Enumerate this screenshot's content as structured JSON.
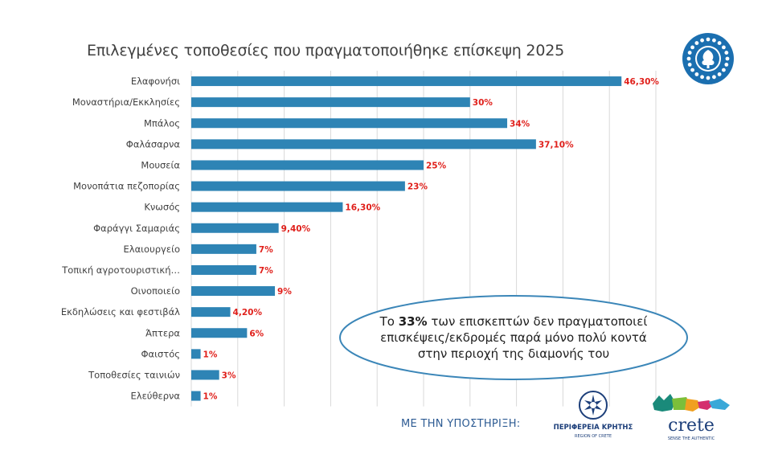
{
  "title": "Επιλεγμένες τοποθεσίες που πραγματοποιήθηκε επίσκεψη 2025",
  "colors": {
    "bar": "#2e84b5",
    "label": "#e0201b",
    "grid": "#d9d9d9",
    "axis_text": "#404040",
    "callout_border": "#3b86b8"
  },
  "chart_data": {
    "type": "bar",
    "orientation": "horizontal",
    "categories": [
      "Ελαφονήσι",
      "Μοναστήρια/Εκκλησίες",
      "Μπάλος",
      "Φαλάσαρνα",
      "Μουσεία",
      "Μονοπάτια πεζοπορίας",
      "Κνωσός",
      "Φαράγγι Σαμαριάς",
      "Ελαιουργείο",
      "Τοπική αγροτουριστική…",
      "Οινοποιείο",
      "Εκδηλώσεις και φεστιβάλ",
      "Άπτερα",
      "Φαιστός",
      "Τοποθεσίες ταινιών",
      "Ελεύθερνα"
    ],
    "values": [
      46.3,
      30,
      34,
      37.1,
      25,
      23,
      16.3,
      9.4,
      7,
      7,
      9,
      4.2,
      6,
      1,
      3,
      1
    ],
    "data_labels": [
      "46,30%",
      "30%",
      "34%",
      "37,10%",
      "25%",
      "23%",
      "16,30%",
      "9,40%",
      "7%",
      "7%",
      "9%",
      "4,20%",
      "6%",
      "1%",
      "3%",
      "1%"
    ],
    "xlim": [
      0,
      50
    ],
    "grid": true,
    "legend": false
  },
  "callout": {
    "pre": "Το ",
    "highlight": "33%",
    "post": " των επισκεπτών δεν πραγματοποιεί επισκέψεις/εκδρομές παρά μόνο πολύ κοντά στην περιοχή της διαμονής του"
  },
  "footer": {
    "support_label": "ΜΕ ΤΗΝ ΥΠΟΣΤΗΡΙΞΗ:",
    "region_name": "ΠΕΡΙΦΕΡΕΙΑ ΚΡΗΤΗΣ",
    "region_name_en": "REGION OF CRETE",
    "crete_word": "crete",
    "crete_tagline": "SENSE THE AUTHENTIC"
  }
}
